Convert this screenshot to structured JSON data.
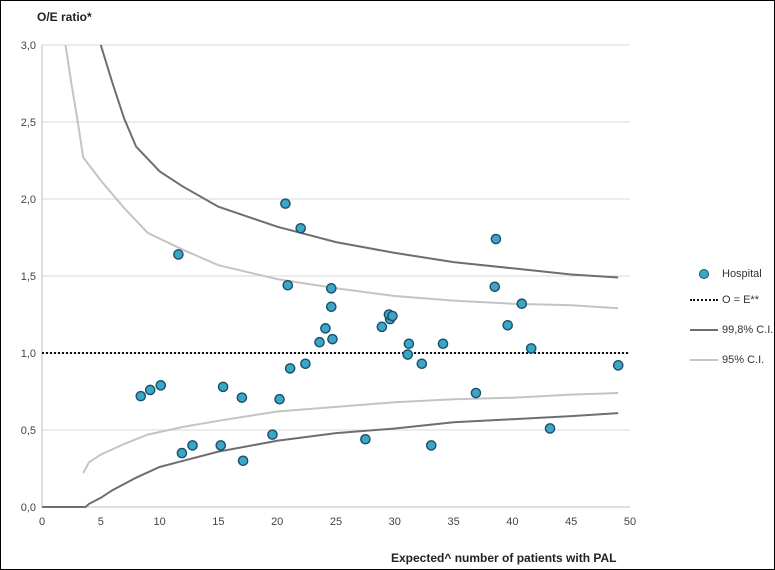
{
  "chart_data": {
    "type": "scatter",
    "title": "",
    "ylabel": "O/E ratio*",
    "xlabel": "Expected^ number of patients with PAL",
    "xlim": [
      0,
      50
    ],
    "ylim": [
      0,
      3
    ],
    "x_ticks": [
      "0",
      "5",
      "10",
      "15",
      "20",
      "25",
      "30",
      "35",
      "40",
      "45",
      "50"
    ],
    "y_ticks": [
      "0,0",
      "0,5",
      "1,0",
      "1,5",
      "2,0",
      "2,5",
      "3,0"
    ],
    "grid": "horizontal",
    "legend_position": "right",
    "series": [
      {
        "name": "Hospital",
        "kind": "points",
        "color": "#3ba6c6",
        "points": [
          [
            8.4,
            0.72
          ],
          [
            9.2,
            0.76
          ],
          [
            10.1,
            0.79
          ],
          [
            11.6,
            1.64
          ],
          [
            11.9,
            0.35
          ],
          [
            12.8,
            0.4
          ],
          [
            15.2,
            0.4
          ],
          [
            15.4,
            0.78
          ],
          [
            17.0,
            0.71
          ],
          [
            17.1,
            0.3
          ],
          [
            19.6,
            0.47
          ],
          [
            20.2,
            0.7
          ],
          [
            20.7,
            1.97
          ],
          [
            20.9,
            1.44
          ],
          [
            21.1,
            0.9
          ],
          [
            22.0,
            1.81
          ],
          [
            22.4,
            0.93
          ],
          [
            23.6,
            1.07
          ],
          [
            24.1,
            1.16
          ],
          [
            24.6,
            1.42
          ],
          [
            24.6,
            1.3
          ],
          [
            24.7,
            1.09
          ],
          [
            27.5,
            0.44
          ],
          [
            28.9,
            1.17
          ],
          [
            29.6,
            1.22
          ],
          [
            29.5,
            1.25
          ],
          [
            29.8,
            1.24
          ],
          [
            31.2,
            1.06
          ],
          [
            31.1,
            0.99
          ],
          [
            32.3,
            0.93
          ],
          [
            33.1,
            0.4
          ],
          [
            34.1,
            1.06
          ],
          [
            36.9,
            0.74
          ],
          [
            38.5,
            1.43
          ],
          [
            38.6,
            1.74
          ],
          [
            39.6,
            1.18
          ],
          [
            40.8,
            1.32
          ],
          [
            41.6,
            1.03
          ],
          [
            43.2,
            0.51
          ],
          [
            49.0,
            0.92
          ]
        ]
      },
      {
        "name": "O = E**",
        "kind": "dotted-line",
        "color": "#111111",
        "x": [
          0,
          50
        ],
        "y": [
          1.0,
          1.0
        ]
      },
      {
        "name": "99,8% C.I.",
        "kind": "line",
        "color": "#6e6e6e",
        "upper": {
          "x": [
            5,
            6,
            7,
            8,
            10,
            12,
            15,
            20,
            25,
            30,
            35,
            40,
            45,
            49
          ],
          "y": [
            3.0,
            2.75,
            2.52,
            2.34,
            2.18,
            2.08,
            1.95,
            1.82,
            1.72,
            1.65,
            1.59,
            1.55,
            1.51,
            1.49
          ]
        },
        "lower": {
          "x": [
            0,
            3.5,
            3.7,
            4,
            5,
            6,
            8,
            10,
            12,
            15,
            20,
            25,
            30,
            35,
            40,
            45,
            49
          ],
          "y": [
            0,
            0,
            0.0,
            0.02,
            0.06,
            0.11,
            0.19,
            0.26,
            0.3,
            0.36,
            0.43,
            0.48,
            0.51,
            0.55,
            0.57,
            0.59,
            0.61
          ]
        }
      },
      {
        "name": "95% C.I.",
        "kind": "line",
        "color": "#c4c4c4",
        "upper": {
          "x": [
            2,
            2.5,
            3,
            3.5,
            5,
            7,
            9,
            12,
            15,
            20,
            25,
            30,
            35,
            40,
            45,
            49
          ],
          "y": [
            3.0,
            2.75,
            2.52,
            2.27,
            2.12,
            1.94,
            1.78,
            1.67,
            1.57,
            1.48,
            1.42,
            1.37,
            1.34,
            1.32,
            1.31,
            1.29
          ]
        },
        "lower": {
          "x": [
            3.5,
            4,
            5,
            7,
            9,
            12,
            15,
            20,
            25,
            30,
            35,
            40,
            45,
            49
          ],
          "y": [
            0.22,
            0.29,
            0.34,
            0.41,
            0.47,
            0.52,
            0.56,
            0.62,
            0.65,
            0.68,
            0.7,
            0.71,
            0.73,
            0.74
          ]
        }
      }
    ]
  }
}
